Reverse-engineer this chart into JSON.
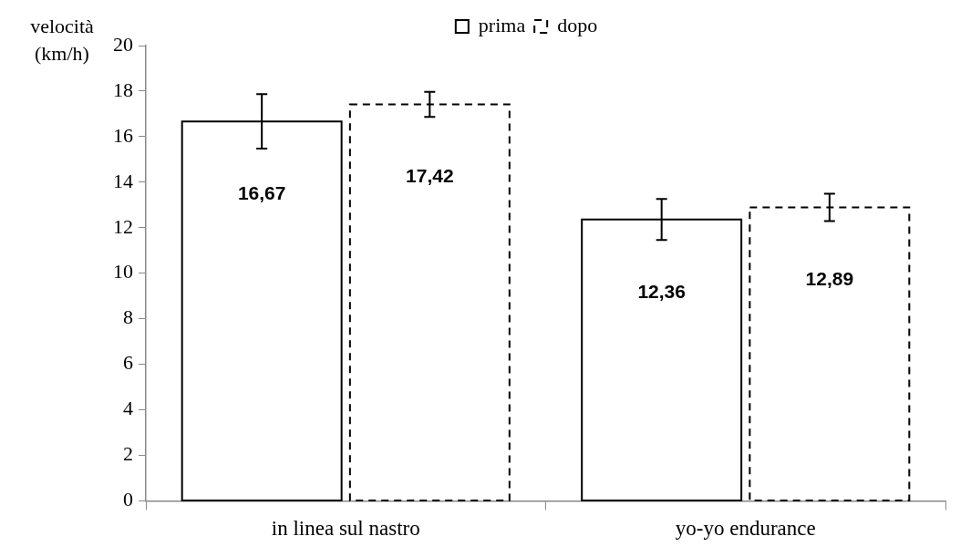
{
  "chart_data": {
    "type": "bar",
    "ylabel": "velocità (km/h)",
    "categories": [
      "in linea sul nastro",
      "yo-yo endurance"
    ],
    "series": [
      {
        "name": "prima",
        "color": "#000000",
        "line_style": "solid",
        "values": [
          16.67,
          12.36
        ],
        "errors": [
          1.2,
          0.9
        ],
        "value_labels": [
          "16,67",
          "12,36"
        ]
      },
      {
        "name": "dopo",
        "color": "#000000",
        "line_style": "dashed",
        "values": [
          17.42,
          12.89
        ],
        "errors": [
          0.55,
          0.6
        ],
        "value_labels": [
          "17,42",
          "12,89"
        ]
      }
    ],
    "ylim": [
      0,
      20
    ],
    "yticks": [
      0,
      2,
      4,
      6,
      8,
      10,
      12,
      14,
      16,
      18,
      20
    ],
    "grid": false,
    "legend": "top"
  }
}
